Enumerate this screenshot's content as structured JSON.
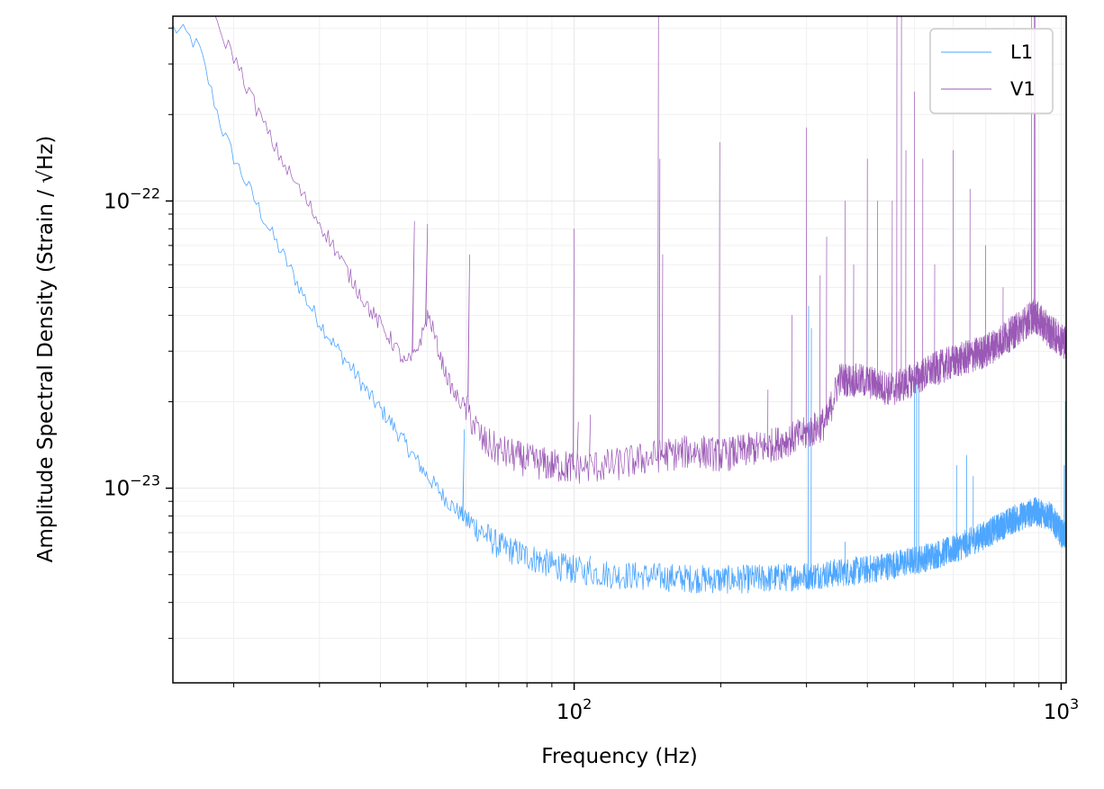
{
  "chart_data": {
    "type": "line",
    "xlabel": "Frequency (Hz)",
    "ylabel": "Amplitude Spectral Density (Strain / √Hz)",
    "xscale": "log",
    "yscale": "log",
    "xlim": [
      15,
      1024
    ],
    "ylim": [
      2.1e-24,
      4.4e-22
    ],
    "grid": true,
    "legend_position": "top-right",
    "x_tick_labels": [
      {
        "value": 100,
        "base": "10",
        "exp": "2"
      },
      {
        "value": 1000,
        "base": "10",
        "exp": "3"
      }
    ],
    "y_tick_labels": [
      {
        "value": 1e-23,
        "base": "10",
        "exp": "−23"
      },
      {
        "value": 1e-22,
        "base": "10",
        "exp": "−22"
      }
    ],
    "series": [
      {
        "name": "L1",
        "color": "#4da6ff",
        "baseline": [
          [
            15,
            4e-22
          ],
          [
            16,
            3.8e-22
          ],
          [
            17,
            3.4e-22
          ],
          [
            18,
            2.4e-22
          ],
          [
            19,
            1.75e-22
          ],
          [
            20,
            1.42e-22
          ],
          [
            22,
            1.02e-22
          ],
          [
            24,
            7.6e-23
          ],
          [
            26,
            5.9e-23
          ],
          [
            28,
            4.6e-23
          ],
          [
            30,
            3.8e-23
          ],
          [
            32,
            3.2e-23
          ],
          [
            35,
            2.6e-23
          ],
          [
            38,
            2.1e-23
          ],
          [
            42,
            1.7e-23
          ],
          [
            46,
            1.35e-23
          ],
          [
            50,
            1.1e-23
          ],
          [
            55,
            9e-24
          ],
          [
            60,
            7.8e-24
          ],
          [
            65,
            7e-24
          ],
          [
            70,
            6.3e-24
          ],
          [
            80,
            5.8e-24
          ],
          [
            90,
            5.4e-24
          ],
          [
            100,
            5.2e-24
          ],
          [
            120,
            5e-24
          ],
          [
            150,
            4.9e-24
          ],
          [
            200,
            4.8e-24
          ],
          [
            250,
            4.85e-24
          ],
          [
            300,
            4.95e-24
          ],
          [
            400,
            5.2e-24
          ],
          [
            500,
            5.6e-24
          ],
          [
            600,
            6.1e-24
          ],
          [
            700,
            6.9e-24
          ],
          [
            800,
            7.8e-24
          ],
          [
            880,
            8.3e-24
          ],
          [
            950,
            8e-24
          ],
          [
            1000,
            7e-24
          ],
          [
            1024,
            6.8e-24
          ]
        ],
        "peaks": [
          [
            59.5,
            1.6e-23
          ],
          [
            108,
            5.8e-24
          ],
          [
            303,
            4.3e-23
          ],
          [
            307,
            3.6e-23
          ],
          [
            360,
            6.5e-24
          ],
          [
            500,
            2.6e-23
          ],
          [
            505,
            2.4e-23
          ],
          [
            510,
            2.2e-23
          ],
          [
            610,
            1.2e-23
          ],
          [
            640,
            1.3e-23
          ],
          [
            660,
            1.1e-23
          ],
          [
            880,
            9.2e-24
          ],
          [
            1015,
            1.2e-23
          ],
          [
            1020,
            2e-23
          ]
        ]
      },
      {
        "name": "V1",
        "color": "#9b59b6",
        "baseline": [
          [
            18,
            4.4e-22
          ],
          [
            20,
            3.2e-22
          ],
          [
            22,
            2.2e-22
          ],
          [
            24,
            1.6e-22
          ],
          [
            26,
            1.25e-22
          ],
          [
            28,
            1.02e-22
          ],
          [
            30,
            8.4e-23
          ],
          [
            32,
            7e-23
          ],
          [
            35,
            5.3e-23
          ],
          [
            38,
            4.2e-23
          ],
          [
            42,
            3.3e-23
          ],
          [
            44,
            2.9e-23
          ],
          [
            45,
            2.7e-23
          ],
          [
            47,
            2.9e-23
          ],
          [
            49,
            3.5e-23
          ],
          [
            50,
            4e-23
          ],
          [
            51,
            3.7e-23
          ],
          [
            53,
            2.9e-23
          ],
          [
            55,
            2.4e-23
          ],
          [
            57,
            2.1e-23
          ],
          [
            60,
            1.9e-23
          ],
          [
            62,
            1.7e-23
          ],
          [
            65,
            1.45e-23
          ],
          [
            70,
            1.35e-23
          ],
          [
            80,
            1.25e-23
          ],
          [
            90,
            1.2e-23
          ],
          [
            100,
            1.18e-23
          ],
          [
            120,
            1.2e-23
          ],
          [
            150,
            1.3e-23
          ],
          [
            180,
            1.35e-23
          ],
          [
            200,
            1.3e-23
          ],
          [
            250,
            1.4e-23
          ],
          [
            300,
            1.55e-23
          ],
          [
            330,
            1.7e-23
          ],
          [
            350,
            2.4e-23
          ],
          [
            400,
            2.35e-23
          ],
          [
            450,
            2.2e-23
          ],
          [
            500,
            2.4e-23
          ],
          [
            550,
            2.6e-23
          ],
          [
            600,
            2.75e-23
          ],
          [
            700,
            3e-23
          ],
          [
            800,
            3.5e-23
          ],
          [
            880,
            4e-23
          ],
          [
            950,
            3.5e-23
          ],
          [
            1000,
            3.3e-23
          ],
          [
            1024,
            3.2e-23
          ]
        ],
        "peaks": [
          [
            47,
            8.5e-23
          ],
          [
            50,
            8.3e-23
          ],
          [
            61,
            6.5e-23
          ],
          [
            100,
            8e-23
          ],
          [
            102,
            1.7e-23
          ],
          [
            108,
            1.8e-23
          ],
          [
            149,
            4.6e-22
          ],
          [
            150,
            1.4e-22
          ],
          [
            152,
            6.5e-23
          ],
          [
            199,
            1.6e-22
          ],
          [
            250,
            2.2e-23
          ],
          [
            280,
            4e-23
          ],
          [
            300,
            1.8e-22
          ],
          [
            320,
            5.5e-23
          ],
          [
            330,
            7.5e-23
          ],
          [
            360,
            1e-22
          ],
          [
            375,
            6e-23
          ],
          [
            400,
            1.4e-22
          ],
          [
            420,
            1e-22
          ],
          [
            450,
            1e-22
          ],
          [
            460,
            4.4e-22
          ],
          [
            470,
            4.4e-22
          ],
          [
            480,
            1.5e-22
          ],
          [
            500,
            2.4e-22
          ],
          [
            520,
            1.4e-22
          ],
          [
            550,
            6e-23
          ],
          [
            600,
            1.5e-22
          ],
          [
            650,
            1.1e-22
          ],
          [
            700,
            7e-23
          ],
          [
            760,
            5e-23
          ],
          [
            870,
            4.4e-22
          ],
          [
            880,
            4.4e-22
          ],
          [
            885,
            4.4e-22
          ]
        ]
      }
    ]
  }
}
